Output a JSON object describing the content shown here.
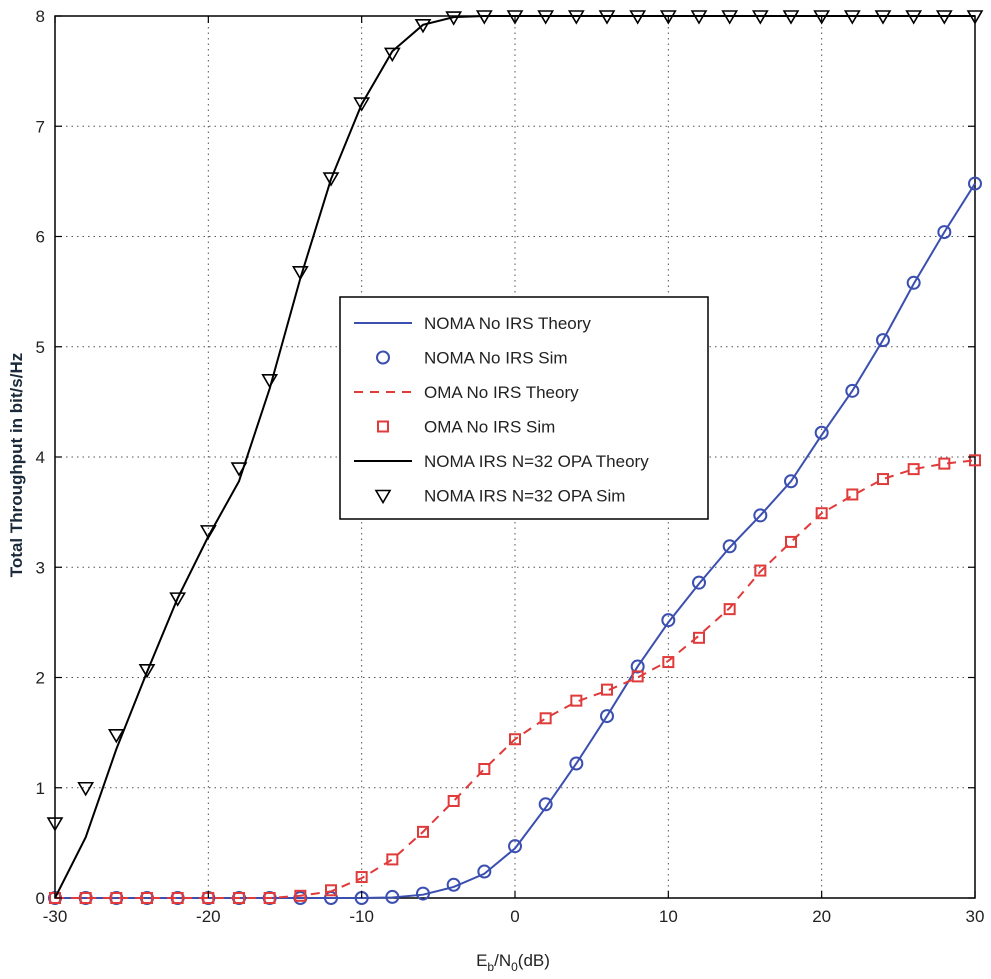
{
  "chart_data": {
    "type": "line",
    "title": "",
    "xlabel_main": "E",
    "xlabel_sub1": "b",
    "xlabel_mid": "/N",
    "xlabel_sub2": "0",
    "xlabel_tail": "(dB)",
    "ylabel": "Total Throughput in bit/s/Hz",
    "xlim": [
      -30,
      30
    ],
    "ylim": [
      0,
      8
    ],
    "xticks": [
      -30,
      -20,
      -10,
      0,
      10,
      20,
      30
    ],
    "yticks": [
      0,
      1,
      2,
      3,
      4,
      5,
      6,
      7,
      8
    ],
    "xtick_labels": [
      "-30",
      "-20",
      "-10",
      "0",
      "10",
      "20",
      "30"
    ],
    "ytick_labels": [
      "0",
      "1",
      "2",
      "3",
      "4",
      "5",
      "6",
      "7",
      "8"
    ],
    "grid": true,
    "legend_position": "center",
    "legend": [
      "NOMA No IRS Theory",
      "NOMA No IRS Sim",
      "OMA No IRS Theory",
      "OMA No IRS Sim",
      "NOMA IRS N=32 OPA Theory",
      "NOMA IRS N=32 OPA Sim"
    ],
    "series": [
      {
        "name": "NOMA No IRS Theory",
        "style": "solid",
        "marker": "none",
        "color": "#3b4fb0",
        "x": [
          -30,
          -14,
          -10,
          -8,
          -6,
          -4,
          -2,
          0,
          2,
          4,
          6,
          8,
          10,
          12,
          14,
          16,
          18,
          20,
          22,
          24,
          26,
          28,
          30
        ],
        "y": [
          0,
          0,
          0,
          0.005,
          0.03,
          0.1,
          0.22,
          0.45,
          0.82,
          1.22,
          1.65,
          2.1,
          2.5,
          2.85,
          3.18,
          3.47,
          3.78,
          4.2,
          4.6,
          5.06,
          5.57,
          6.04,
          6.48
        ]
      },
      {
        "name": "NOMA No IRS Sim",
        "style": "none",
        "marker": "circle",
        "color": "#3b4fb0",
        "x": [
          -30,
          -28,
          -26,
          -24,
          -22,
          -20,
          -18,
          -16,
          -14,
          -12,
          -10,
          -8,
          -6,
          -4,
          -2,
          0,
          2,
          4,
          6,
          8,
          10,
          12,
          14,
          16,
          18,
          20,
          22,
          24,
          26,
          28,
          30
        ],
        "y": [
          0,
          0,
          0,
          0,
          0,
          0,
          0,
          0,
          0,
          0,
          0,
          0.01,
          0.04,
          0.12,
          0.24,
          0.47,
          0.85,
          1.22,
          1.65,
          2.1,
          2.52,
          2.86,
          3.19,
          3.47,
          3.78,
          4.22,
          4.6,
          5.06,
          5.58,
          6.04,
          6.48
        ]
      },
      {
        "name": "OMA No IRS Theory",
        "style": "dashed",
        "marker": "none",
        "color": "#e03a3a",
        "x": [
          -30,
          -16,
          -14,
          -12,
          -10,
          -8,
          -6,
          -4,
          -2,
          0,
          2,
          4,
          6,
          8,
          10,
          12,
          14,
          16,
          18,
          20,
          22,
          24,
          26,
          28,
          30
        ],
        "y": [
          0,
          0,
          0.02,
          0.06,
          0.18,
          0.35,
          0.6,
          0.88,
          1.17,
          1.44,
          1.63,
          1.78,
          1.88,
          2.0,
          2.15,
          2.38,
          2.63,
          2.96,
          3.23,
          3.49,
          3.65,
          3.8,
          3.89,
          3.94,
          3.97
        ]
      },
      {
        "name": "OMA No IRS Sim",
        "style": "none",
        "marker": "square",
        "color": "#e03a3a",
        "x": [
          -30,
          -28,
          -26,
          -24,
          -22,
          -20,
          -18,
          -16,
          -14,
          -12,
          -10,
          -8,
          -6,
          -4,
          -2,
          0,
          2,
          4,
          6,
          8,
          10,
          12,
          14,
          16,
          18,
          20,
          22,
          24,
          26,
          28,
          30
        ],
        "y": [
          0,
          0,
          0,
          0,
          0,
          0,
          0,
          0,
          0.02,
          0.07,
          0.19,
          0.35,
          0.6,
          0.88,
          1.17,
          1.44,
          1.63,
          1.79,
          1.89,
          2.01,
          2.14,
          2.36,
          2.62,
          2.97,
          3.23,
          3.49,
          3.66,
          3.8,
          3.89,
          3.94,
          3.97
        ]
      },
      {
        "name": "NOMA IRS N=32 OPA Theory",
        "style": "solid",
        "marker": "none",
        "color": "#000000",
        "x": [
          -30,
          -28,
          -26,
          -24,
          -22,
          -20,
          -18,
          -16,
          -14,
          -12,
          -10,
          -8,
          -6,
          -4,
          -2,
          0,
          30
        ],
        "y": [
          0,
          0.55,
          1.35,
          2.05,
          2.72,
          3.28,
          3.78,
          4.62,
          5.62,
          6.52,
          7.2,
          7.68,
          7.92,
          7.99,
          8.0,
          8.0,
          8.0
        ]
      },
      {
        "name": "NOMA IRS N=32 OPA Sim",
        "style": "none",
        "marker": "triangle-down",
        "color": "#000000",
        "x": [
          -30,
          -28,
          -26,
          -24,
          -22,
          -20,
          -18,
          -16,
          -14,
          -12,
          -10,
          -8,
          -6,
          -4,
          -2,
          0,
          2,
          4,
          6,
          8,
          10,
          12,
          14,
          16,
          18,
          20,
          22,
          24,
          26,
          28,
          30
        ],
        "y": [
          0.68,
          1.0,
          1.48,
          2.07,
          2.72,
          3.33,
          3.9,
          4.7,
          5.68,
          6.53,
          7.21,
          7.66,
          7.92,
          7.99,
          8.0,
          8.0,
          8.0,
          8.0,
          8.0,
          8.0,
          8.0,
          8.0,
          8.0,
          8.0,
          8.0,
          8.0,
          8.0,
          8.0,
          8.0,
          8.0,
          8.0
        ]
      }
    ]
  }
}
